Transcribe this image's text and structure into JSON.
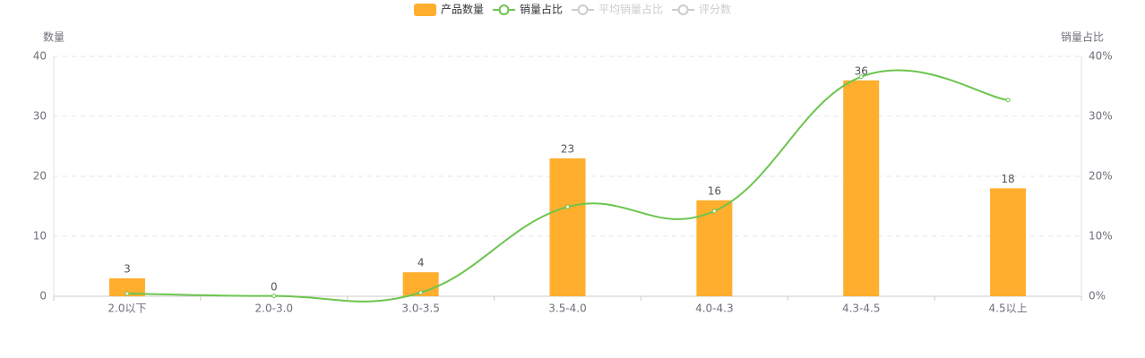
{
  "chart_data": {
    "type": "bar-line",
    "categories": [
      "2.0以下",
      "2.0-3.0",
      "3.0-3.5",
      "3.5-4.0",
      "4.0-4.3",
      "4.3-4.5",
      "4.5以上"
    ],
    "series": [
      {
        "name": "产品数量",
        "type": "bar",
        "color": "#ffae2e",
        "values": [
          3,
          0,
          4,
          23,
          16,
          36,
          18
        ]
      },
      {
        "name": "销量占比",
        "type": "line",
        "axis": "y2",
        "color": "#6cc54e",
        "values": [
          0.45,
          0.05,
          0.6,
          14.9,
          14.2,
          36.6,
          32.7
        ]
      },
      {
        "name": "平均销量占比",
        "type": "line",
        "visible": false,
        "color": "#cccccc"
      },
      {
        "name": "评分数",
        "type": "line",
        "visible": false,
        "color": "#cccccc"
      }
    ],
    "ylabel": "数量",
    "y2label": "销量占比",
    "ylim": [
      0,
      40
    ],
    "yticks": [
      0,
      10,
      20,
      30,
      40
    ],
    "y2lim": [
      0,
      40
    ],
    "y2ticks": [
      {
        "value": 0,
        "label": "0%"
      },
      {
        "value": 10,
        "label": "10%"
      },
      {
        "value": 20,
        "label": "20%"
      },
      {
        "value": 30,
        "label": "30%"
      },
      {
        "value": 40,
        "label": "40%"
      }
    ],
    "grid": true
  }
}
